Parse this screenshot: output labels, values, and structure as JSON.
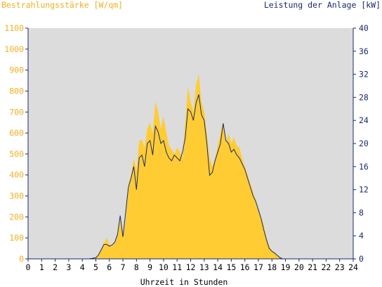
{
  "chart_data": {
    "type": "area",
    "title_left": "Bestrahlungsstärke [W/qm]",
    "title_right": "Leistung der Anlage [kW]",
    "xlabel": "Uhrzeit in Stunden",
    "xlim": [
      0,
      24
    ],
    "x_ticks": [
      "0",
      "1",
      "2",
      "3",
      "4",
      "5",
      "6",
      "7",
      "8",
      "9",
      "10",
      "11",
      "12",
      "13",
      "14",
      "15",
      "16",
      "17",
      "18",
      "19",
      "20",
      "21",
      "22",
      "23",
      "24"
    ],
    "y_left_lim": [
      0,
      1100
    ],
    "y_left_ticks": [
      "0",
      "100",
      "200",
      "300",
      "400",
      "500",
      "600",
      "700",
      "800",
      "900",
      "1000",
      "1100"
    ],
    "y_right_lim": [
      0,
      40
    ],
    "y_right_ticks": [
      "0",
      "4",
      "8",
      "12",
      "16",
      "20",
      "24",
      "28",
      "32",
      "36",
      "40"
    ],
    "grid": false,
    "colors": {
      "irradiance": "#ffcc33",
      "power": "#1a2a6c",
      "plot_bg": "#dcdcdc",
      "left_axis_text": "#f0b020",
      "right_axis_text": "#1a2a6c",
      "axis": "#1a2a6c"
    },
    "series": [
      {
        "name": "Bestrahlungsstärke",
        "axis": "left",
        "x": [
          0,
          4.5,
          5,
          5.2,
          5.4,
          5.6,
          5.8,
          6.0,
          6.2,
          6.4,
          6.6,
          6.8,
          7.0,
          7.2,
          7.4,
          7.6,
          7.8,
          8.0,
          8.2,
          8.4,
          8.6,
          8.8,
          9.0,
          9.2,
          9.4,
          9.6,
          9.8,
          10.0,
          10.2,
          10.4,
          10.6,
          10.8,
          11.0,
          11.2,
          11.4,
          11.6,
          11.8,
          12.0,
          12.2,
          12.4,
          12.6,
          12.8,
          13.0,
          13.2,
          13.4,
          13.6,
          13.8,
          14.0,
          14.2,
          14.4,
          14.6,
          14.8,
          15.0,
          15.2,
          15.4,
          15.6,
          15.8,
          16.0,
          16.2,
          16.4,
          16.6,
          16.8,
          17.0,
          17.2,
          17.4,
          17.6,
          17.8,
          18.0,
          18.2,
          18.4,
          18.6,
          18.8,
          19.0,
          19.2,
          19.4,
          19.6,
          19.8,
          20.0,
          20.2,
          24
        ],
        "values": [
          0,
          0,
          5,
          20,
          45,
          75,
          100,
          70,
          60,
          80,
          120,
          200,
          100,
          190,
          350,
          400,
          480,
          420,
          560,
          570,
          530,
          620,
          650,
          600,
          750,
          700,
          620,
          680,
          600,
          540,
          520,
          500,
          530,
          510,
          480,
          650,
          820,
          750,
          700,
          830,
          880,
          750,
          700,
          600,
          480,
          440,
          480,
          540,
          600,
          650,
          550,
          600,
          550,
          580,
          540,
          530,
          480,
          440,
          400,
          360,
          320,
          280,
          240,
          200,
          160,
          100,
          60,
          40,
          30,
          15,
          5,
          0,
          0,
          0,
          0,
          0,
          0,
          0,
          0,
          0
        ]
      },
      {
        "name": "Leistung",
        "axis": "right",
        "x": [
          0,
          4.5,
          5,
          5.2,
          5.4,
          5.6,
          5.8,
          6.0,
          6.2,
          6.4,
          6.6,
          6.8,
          7.0,
          7.2,
          7.4,
          7.6,
          7.8,
          8.0,
          8.2,
          8.4,
          8.6,
          8.8,
          9.0,
          9.2,
          9.4,
          9.6,
          9.8,
          10.0,
          10.2,
          10.4,
          10.6,
          10.8,
          11.0,
          11.2,
          11.4,
          11.6,
          11.8,
          12.0,
          12.2,
          12.4,
          12.6,
          12.8,
          13.0,
          13.2,
          13.4,
          13.6,
          13.8,
          14.0,
          14.2,
          14.4,
          14.6,
          14.8,
          15.0,
          15.2,
          15.4,
          15.6,
          15.8,
          16.0,
          16.2,
          16.4,
          16.6,
          16.8,
          17.0,
          17.2,
          17.4,
          17.6,
          17.8,
          18.0,
          18.2,
          18.4,
          18.6,
          18.8,
          19.0,
          19.2,
          19.4,
          19.6,
          19.8,
          20.0,
          20.2,
          24
        ],
        "values": [
          0,
          0,
          0.2,
          0.7,
          1.6,
          2.5,
          2.5,
          2.2,
          2.4,
          2.9,
          4.2,
          7.5,
          3.8,
          8.0,
          12.4,
          14.0,
          16.0,
          12.0,
          17.5,
          18.0,
          16.0,
          20.0,
          20.5,
          18.0,
          23.0,
          22.0,
          20.0,
          20.5,
          18.5,
          17.5,
          17.0,
          18.0,
          17.5,
          17.0,
          18.5,
          21.0,
          26.0,
          25.5,
          24.0,
          27.0,
          28.5,
          25.0,
          24.0,
          20.0,
          14.5,
          15.0,
          17.0,
          18.5,
          20.0,
          23.5,
          20.5,
          20.0,
          18.5,
          19.0,
          18.0,
          17.5,
          16.5,
          15.5,
          14.0,
          12.5,
          11.0,
          10.0,
          8.5,
          7.0,
          5.0,
          3.3,
          1.8,
          1.3,
          1.0,
          0.6,
          0.2,
          0,
          0,
          0,
          0,
          0,
          0,
          0,
          0,
          0
        ]
      }
    ]
  }
}
